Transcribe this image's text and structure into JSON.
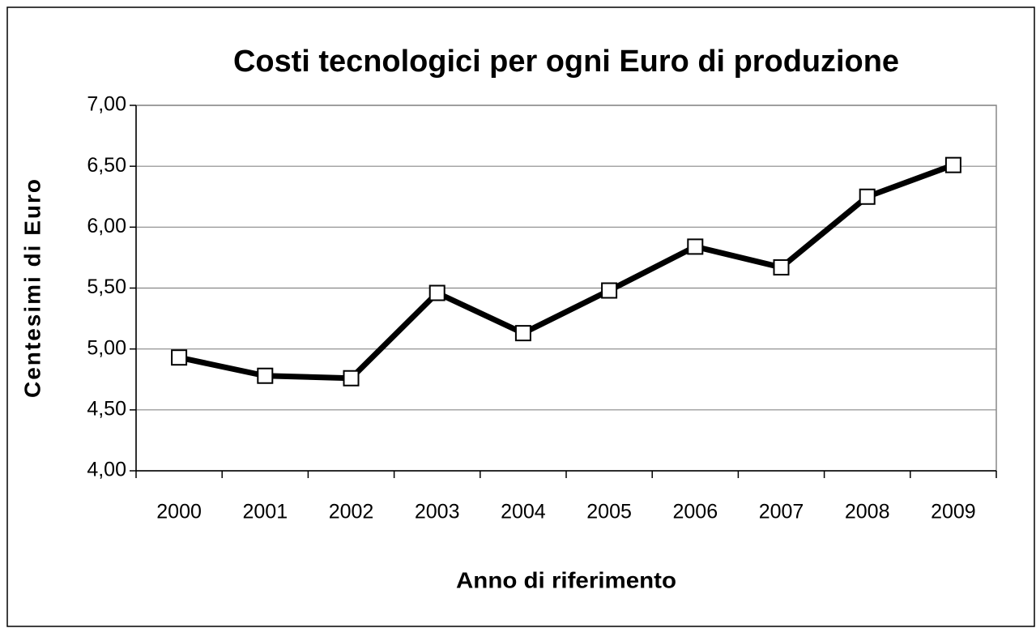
{
  "chart_data": {
    "type": "line",
    "title": "Costi tecnologici per ogni Euro di produzione",
    "x_label": "Anno di riferimento",
    "y_label": "Centesimi di Euro",
    "categories": [
      "2000",
      "2001",
      "2002",
      "2003",
      "2004",
      "2005",
      "2006",
      "2007",
      "2008",
      "2009"
    ],
    "series": [
      {
        "name": "Costi tecnologici",
        "color": "#000000",
        "values": [
          4.93,
          4.78,
          4.76,
          5.46,
          5.13,
          5.48,
          5.84,
          5.67,
          6.25,
          6.51
        ]
      }
    ],
    "ylim": [
      4,
      7
    ],
    "yticks": [
      {
        "value": 4,
        "label": "4,00"
      },
      {
        "value": 4.5,
        "label": "4,50"
      },
      {
        "value": 5,
        "label": "5,00"
      },
      {
        "value": 5.5,
        "label": "5,50"
      },
      {
        "value": 6,
        "label": "6,00"
      },
      {
        "value": 6.5,
        "label": "6,50"
      },
      {
        "value": 7,
        "label": "7,00"
      }
    ],
    "grid": true
  }
}
